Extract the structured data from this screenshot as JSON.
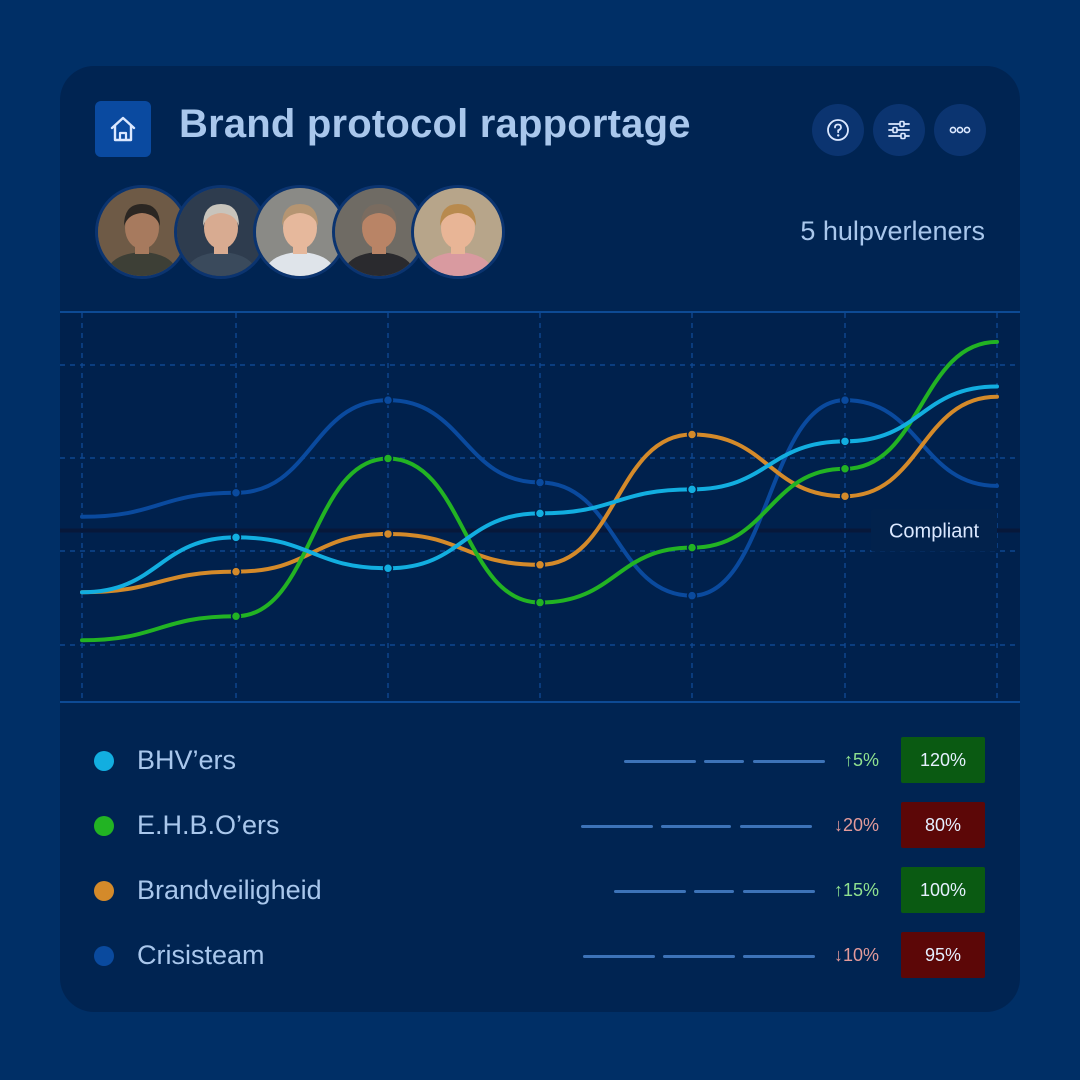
{
  "header": {
    "title": "Brand protocol rapportage",
    "team_count": "5 hulpverleners",
    "logo_icon": "home-icon",
    "actions": [
      {
        "name": "help-icon"
      },
      {
        "name": "sliders-icon"
      },
      {
        "name": "more-icon"
      }
    ]
  },
  "avatars": [
    {
      "name": "avatar-1",
      "skin": "#a77a5e",
      "hair": "#2b2622",
      "shirt": "#3d3f36",
      "bg": "#6e5a46"
    },
    {
      "name": "avatar-2",
      "skin": "#d8ab91",
      "hair": "#c8c4bc",
      "shirt": "#3a4a5c",
      "bg": "#2e3c4e"
    },
    {
      "name": "avatar-3",
      "skin": "#e6b89c",
      "hair": "#b59572",
      "shirt": "#dfe4ea",
      "bg": "#8a8a86"
    },
    {
      "name": "avatar-4",
      "skin": "#b98466",
      "hair": "#7a6c60",
      "shirt": "#2a2a2e",
      "bg": "#6f6b64"
    },
    {
      "name": "avatar-5",
      "skin": "#e8b596",
      "hair": "#b88a4e",
      "shirt": "#d99aa0",
      "bg": "#b7a58a"
    }
  ],
  "chart_data": {
    "type": "line",
    "x": [
      0,
      1,
      2,
      3,
      4,
      5,
      6
    ],
    "ylim": [
      0,
      100
    ],
    "grid": true,
    "threshold": {
      "label": "Compliant",
      "value": 43
    },
    "series": [
      {
        "name": "BHV’ers",
        "color": "#12aee0",
        "values": [
          25,
          41,
          32,
          48,
          55,
          69,
          85
        ]
      },
      {
        "name": "E.H.B.O’ers",
        "color": "#22b323",
        "values": [
          11,
          18,
          64,
          22,
          38,
          61,
          98
        ]
      },
      {
        "name": "Brandveiligheid",
        "color": "#d48a2a",
        "values": [
          25,
          31,
          42,
          33,
          71,
          53,
          82
        ]
      },
      {
        "name": "Crisisteam",
        "color": "#0a4a9e",
        "values": [
          47,
          54,
          81,
          57,
          24,
          81,
          56
        ]
      }
    ]
  },
  "legend": [
    {
      "label": "BHV’ers",
      "color": "#12aee0",
      "change": "↑5%",
      "trend": "up",
      "value": "120%",
      "status": "good"
    },
    {
      "label": "E.H.B.O’ers",
      "color": "#22b323",
      "change": "↓20%",
      "trend": "down",
      "value": "80%",
      "status": "bad"
    },
    {
      "label": "Brandveiligheid",
      "color": "#d48a2a",
      "change": "↑15%",
      "trend": "up",
      "value": "100%",
      "status": "good"
    },
    {
      "label": "Crisisteam",
      "color": "#0a4a9e",
      "change": "↓10%",
      "trend": "down",
      "value": "95%",
      "status": "bad"
    }
  ]
}
